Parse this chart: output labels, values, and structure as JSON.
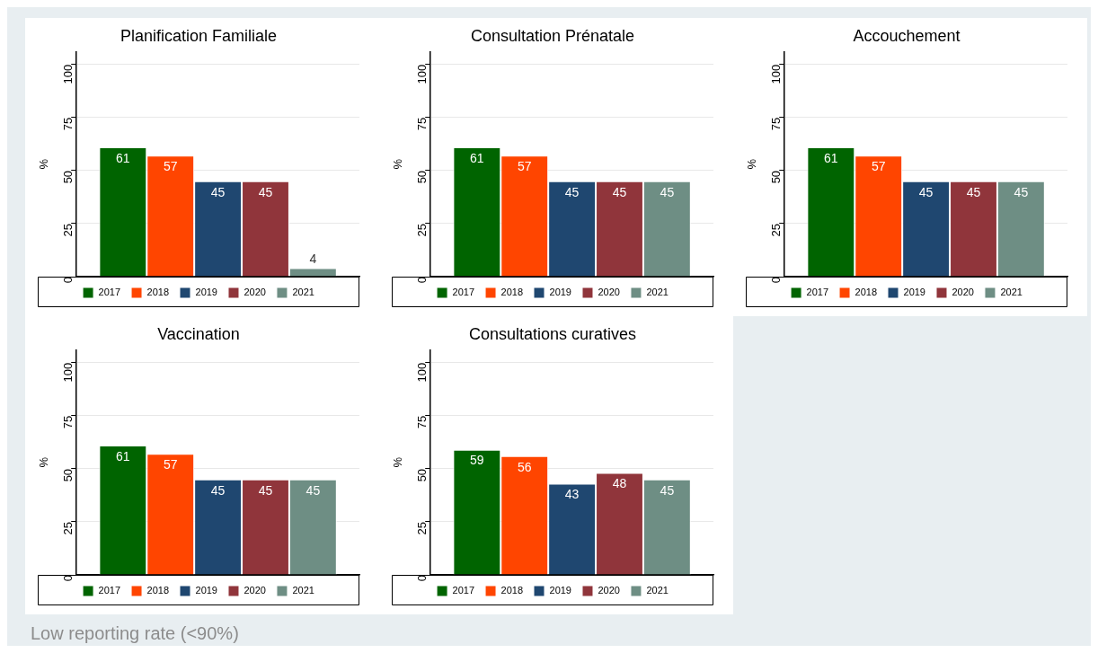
{
  "chart_data": [
    {
      "type": "bar",
      "title": "Planification Familiale",
      "ylabel": "%",
      "categories": [
        null
      ],
      "ylim": [
        0,
        106
      ],
      "yticks": [
        0,
        25,
        50,
        75,
        100
      ],
      "grid": "y",
      "legend": "bottom",
      "data_labels": true,
      "series": [
        {
          "name": "2017",
          "color": "#006400",
          "values": [
            61
          ]
        },
        {
          "name": "2018",
          "color": "#ff4500",
          "values": [
            57
          ]
        },
        {
          "name": "2019",
          "color": "#1f4770",
          "values": [
            45
          ]
        },
        {
          "name": "2020",
          "color": "#90353b",
          "values": [
            45
          ]
        },
        {
          "name": "2021",
          "color": "#6e8e84",
          "values": [
            4
          ]
        }
      ]
    },
    {
      "type": "bar",
      "title": "Consultation Prénatale",
      "ylabel": "%",
      "categories": [
        null
      ],
      "ylim": [
        0,
        106
      ],
      "yticks": [
        0,
        25,
        50,
        75,
        100
      ],
      "grid": "y",
      "legend": "bottom",
      "data_labels": true,
      "series": [
        {
          "name": "2017",
          "color": "#006400",
          "values": [
            61
          ]
        },
        {
          "name": "2018",
          "color": "#ff4500",
          "values": [
            57
          ]
        },
        {
          "name": "2019",
          "color": "#1f4770",
          "values": [
            45
          ]
        },
        {
          "name": "2020",
          "color": "#90353b",
          "values": [
            45
          ]
        },
        {
          "name": "2021",
          "color": "#6e8e84",
          "values": [
            45
          ]
        }
      ]
    },
    {
      "type": "bar",
      "title": "Accouchement",
      "ylabel": "%",
      "categories": [
        null
      ],
      "ylim": [
        0,
        106
      ],
      "yticks": [
        0,
        25,
        50,
        75,
        100
      ],
      "grid": "y",
      "legend": "bottom",
      "data_labels": true,
      "series": [
        {
          "name": "2017",
          "color": "#006400",
          "values": [
            61
          ]
        },
        {
          "name": "2018",
          "color": "#ff4500",
          "values": [
            57
          ]
        },
        {
          "name": "2019",
          "color": "#1f4770",
          "values": [
            45
          ]
        },
        {
          "name": "2020",
          "color": "#90353b",
          "values": [
            45
          ]
        },
        {
          "name": "2021",
          "color": "#6e8e84",
          "values": [
            45
          ]
        }
      ]
    },
    {
      "type": "bar",
      "title": "Vaccination",
      "ylabel": "%",
      "categories": [
        null
      ],
      "ylim": [
        0,
        106
      ],
      "yticks": [
        0,
        25,
        50,
        75,
        100
      ],
      "grid": "y",
      "legend": "bottom",
      "data_labels": true,
      "series": [
        {
          "name": "2017",
          "color": "#006400",
          "values": [
            61
          ]
        },
        {
          "name": "2018",
          "color": "#ff4500",
          "values": [
            57
          ]
        },
        {
          "name": "2019",
          "color": "#1f4770",
          "values": [
            45
          ]
        },
        {
          "name": "2020",
          "color": "#90353b",
          "values": [
            45
          ]
        },
        {
          "name": "2021",
          "color": "#6e8e84",
          "values": [
            45
          ]
        }
      ]
    },
    {
      "type": "bar",
      "title": "Consultations curatives",
      "ylabel": "%",
      "categories": [
        null
      ],
      "ylim": [
        0,
        106
      ],
      "yticks": [
        0,
        25,
        50,
        75,
        100
      ],
      "grid": "y",
      "legend": "bottom",
      "data_labels": true,
      "annotations": [
        "Low reporting rate (<90%)"
      ],
      "series": [
        {
          "name": "2017",
          "color": "#006400",
          "values": [
            59
          ]
        },
        {
          "name": "2018",
          "color": "#ff4500",
          "values": [
            56
          ]
        },
        {
          "name": "2019",
          "color": "#1f4770",
          "values": [
            43
          ]
        },
        {
          "name": "2020",
          "color": "#90353b",
          "values": [
            48
          ]
        },
        {
          "name": "2021",
          "color": "#6e8e84",
          "values": [
            45
          ]
        }
      ]
    }
  ]
}
